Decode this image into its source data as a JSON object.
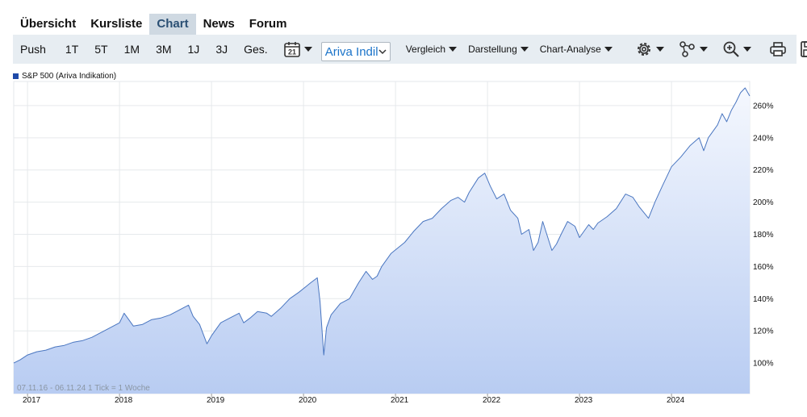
{
  "tabs": [
    {
      "label": "Übersicht"
    },
    {
      "label": "Kursliste"
    },
    {
      "label": "Chart"
    },
    {
      "label": "News"
    },
    {
      "label": "Forum"
    }
  ],
  "toolbar": {
    "periods": [
      "Push",
      "1T",
      "5T",
      "1M",
      "3M",
      "1J",
      "3J",
      "Ges."
    ],
    "calendar_day": "21",
    "exchange_select": "Ariva Indikation",
    "exchange_select_visible": "Ariva Indil",
    "vergleich": "Vergleich",
    "darstellung": "Darstellung",
    "chart_analyse": "Chart-Analyse",
    "icons": [
      "settings-icon",
      "share-nodes-icon",
      "zoom-in-icon",
      "printer-icon",
      "save-icon"
    ]
  },
  "chart_data": {
    "type": "area",
    "legend": "S&P 500 (Ariva Indikation)",
    "range_info": "07.11.16 - 06.11.24   1 Tick = 1 Woche",
    "x_tick_labels": [
      "2017",
      "2018",
      "2019",
      "2020",
      "2021",
      "2022",
      "2023",
      "2024"
    ],
    "y_tick_labels": [
      "100%",
      "120%",
      "140%",
      "160%",
      "180%",
      "200%",
      "220%",
      "240%",
      "260%"
    ],
    "y_ticks": [
      100,
      120,
      140,
      160,
      180,
      200,
      220,
      240,
      260
    ],
    "ylim": [
      81,
      275
    ],
    "xlim": [
      2016.85,
      2024.85
    ],
    "grid": true,
    "line_color": "#4a76c0",
    "fill_top_color": "#f5f8fe",
    "fill_bottom_color": "#b8ccf2",
    "series": [
      {
        "name": "S&P 500 (Ariva Indikation)",
        "x": [
          2016.85,
          2016.92,
          2017.0,
          2017.1,
          2017.2,
          2017.3,
          2017.4,
          2017.5,
          2017.6,
          2017.7,
          2017.8,
          2017.9,
          2018.0,
          2018.05,
          2018.1,
          2018.15,
          2018.25,
          2018.35,
          2018.45,
          2018.55,
          2018.65,
          2018.75,
          2018.8,
          2018.87,
          2018.95,
          2019.0,
          2019.1,
          2019.2,
          2019.3,
          2019.35,
          2019.42,
          2019.5,
          2019.6,
          2019.65,
          2019.75,
          2019.85,
          2019.95,
          2020.08,
          2020.15,
          2020.18,
          2020.22,
          2020.25,
          2020.3,
          2020.4,
          2020.5,
          2020.6,
          2020.68,
          2020.75,
          2020.8,
          2020.85,
          2020.95,
          2021.1,
          2021.2,
          2021.3,
          2021.4,
          2021.5,
          2021.6,
          2021.68,
          2021.75,
          2021.8,
          2021.9,
          2021.97,
          2022.03,
          2022.1,
          2022.18,
          2022.25,
          2022.33,
          2022.37,
          2022.45,
          2022.5,
          2022.55,
          2022.6,
          2022.65,
          2022.7,
          2022.75,
          2022.8,
          2022.87,
          2022.95,
          2023.0,
          2023.1,
          2023.15,
          2023.2,
          2023.3,
          2023.4,
          2023.5,
          2023.58,
          2023.65,
          2023.75,
          2023.82,
          2023.9,
          2024.0,
          2024.1,
          2024.2,
          2024.3,
          2024.35,
          2024.4,
          2024.5,
          2024.55,
          2024.6,
          2024.65,
          2024.7,
          2024.75,
          2024.8,
          2024.85
        ],
        "y": [
          100,
          102,
          105,
          107,
          108,
          110,
          111,
          113,
          114,
          116,
          119,
          122,
          125,
          131,
          127,
          123,
          124,
          127,
          128,
          130,
          133,
          136,
          129,
          124,
          112,
          117,
          125,
          128,
          131,
          125,
          128,
          132,
          131,
          129,
          134,
          140,
          144,
          150,
          153,
          138,
          105,
          122,
          130,
          137,
          140,
          150,
          157,
          152,
          154,
          160,
          168,
          175,
          182,
          188,
          190,
          196,
          201,
          203,
          200,
          206,
          215,
          218,
          210,
          202,
          205,
          195,
          190,
          180,
          183,
          170,
          175,
          188,
          179,
          170,
          174,
          180,
          188,
          185,
          178,
          186,
          183,
          187,
          191,
          196,
          205,
          203,
          197,
          190,
          200,
          210,
          222,
          228,
          235,
          240,
          232,
          240,
          248,
          255,
          250,
          257,
          262,
          268,
          271,
          266
        ]
      }
    ]
  }
}
